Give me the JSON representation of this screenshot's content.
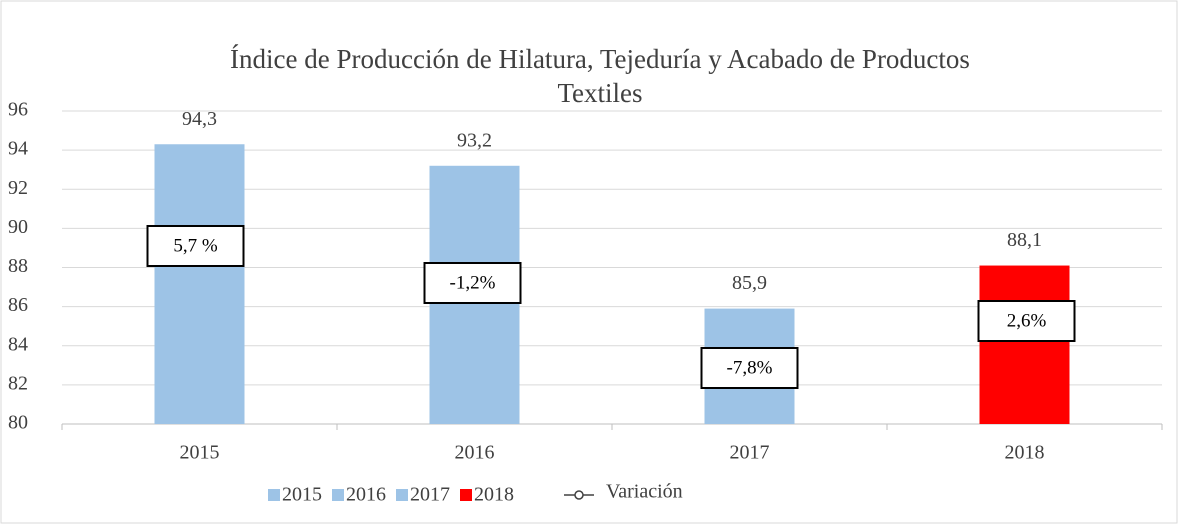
{
  "chart_data": {
    "type": "bar",
    "title": "Índice de Producción de Hilatura, Tejeduría y Acabado de Productos Textiles",
    "categories": [
      "2015",
      "2016",
      "2017",
      "2018"
    ],
    "series": [
      {
        "name": "2015",
        "color": "#9dc3e6",
        "values": [
          94.3,
          null,
          null,
          null
        ],
        "value_labels": [
          "94,3",
          null,
          null,
          null
        ]
      },
      {
        "name": "2016",
        "color": "#9dc3e6",
        "values": [
          null,
          93.2,
          null,
          null
        ],
        "value_labels": [
          null,
          "93,2",
          null,
          null
        ]
      },
      {
        "name": "2017",
        "color": "#9dc3e6",
        "values": [
          null,
          null,
          85.9,
          null
        ],
        "value_labels": [
          null,
          null,
          "85,9",
          null
        ]
      },
      {
        "name": "2018",
        "color": "#ff0000",
        "values": [
          null,
          null,
          null,
          88.1
        ],
        "value_labels": [
          null,
          null,
          null,
          "88,1"
        ]
      }
    ],
    "variation": {
      "name": "Variación",
      "values": [
        5.7,
        -1.2,
        -7.8,
        2.6
      ],
      "value_labels": [
        "5,7 %",
        "-1,2%",
        "-7,8%",
        "2,6%"
      ]
    },
    "ylim": [
      80,
      96
    ],
    "yticks": [
      80,
      82,
      84,
      86,
      88,
      90,
      92,
      94,
      96
    ],
    "grid": true
  }
}
